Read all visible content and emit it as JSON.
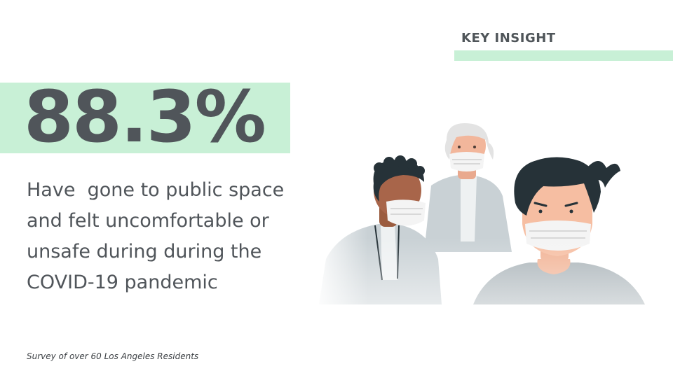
{
  "header": {
    "label": "KEY INSIGHT"
  },
  "stat": {
    "value": "88.3%",
    "description": "Have  gone to public space and felt uncomfortable or unsafe during during the COVID-19 pandemic"
  },
  "footer": {
    "source": "Survey of over 60 Los Angeles Residents"
  },
  "colors": {
    "accent_green": "#c8f0d6",
    "text_gray": "#50555a",
    "shirt_gray": "#a9b3b8",
    "hair_dark": "#263238",
    "mask_white": "#f4f4f4"
  },
  "illustration": {
    "icon": "masked-people-illustration"
  }
}
